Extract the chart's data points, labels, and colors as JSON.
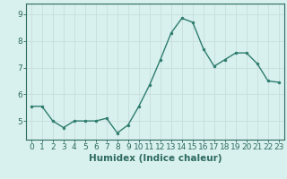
{
  "x": [
    0,
    1,
    2,
    3,
    4,
    5,
    6,
    7,
    8,
    9,
    10,
    11,
    12,
    13,
    14,
    15,
    16,
    17,
    18,
    19,
    20,
    21,
    22,
    23
  ],
  "y": [
    5.55,
    5.55,
    5.0,
    4.75,
    5.0,
    5.0,
    5.0,
    5.1,
    4.55,
    4.85,
    5.55,
    6.35,
    7.3,
    8.3,
    8.85,
    8.7,
    7.7,
    7.05,
    7.3,
    7.55,
    7.55,
    7.15,
    6.5,
    6.45
  ],
  "line_color": "#2e7d6e",
  "marker": "o",
  "marker_size": 2.0,
  "linewidth": 1.0,
  "bg_color": "#d8f0ee",
  "grid_color": "#c8dedd",
  "xlabel": "Humidex (Indice chaleur)",
  "xlabel_fontsize": 7.5,
  "ylim": [
    4.3,
    9.4
  ],
  "xlim": [
    -0.5,
    23.5
  ],
  "yticks": [
    5,
    6,
    7,
    8,
    9
  ],
  "xticks": [
    0,
    1,
    2,
    3,
    4,
    5,
    6,
    7,
    8,
    9,
    10,
    11,
    12,
    13,
    14,
    15,
    16,
    17,
    18,
    19,
    20,
    21,
    22,
    23
  ],
  "tick_fontsize": 6.5,
  "spine_color": "#2e6b60",
  "text_color": "#2e6b60"
}
